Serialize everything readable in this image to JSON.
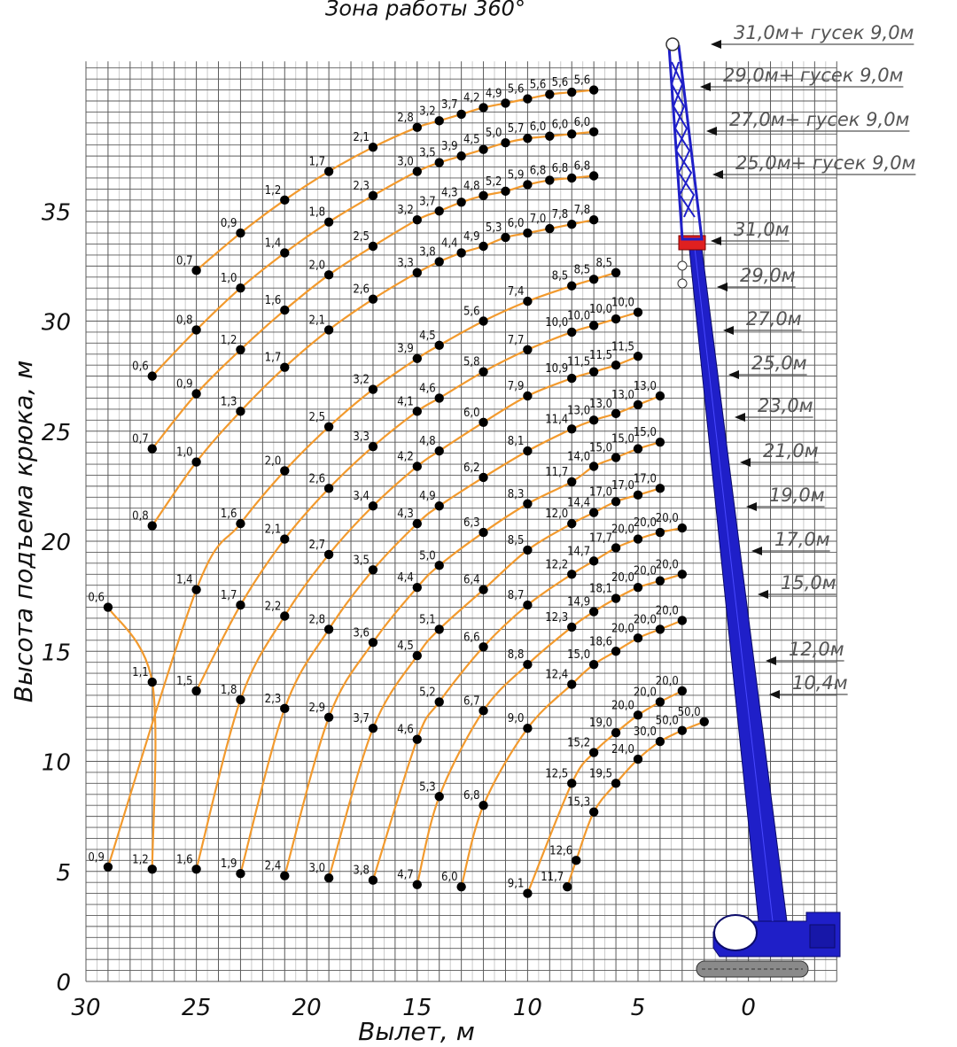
{
  "chart_data": {
    "type": "line",
    "title": "Зона работы 360°",
    "xlabel": "Вылет, м",
    "ylabel": "Высота подъема крюка, м",
    "xlim": [
      30,
      -4
    ],
    "ylim": [
      0,
      40
    ],
    "x_reversed": true,
    "xticks": [
      "30",
      "25",
      "20",
      "15",
      "10",
      "5",
      "0"
    ],
    "yticks": [
      "0",
      "5",
      "10",
      "15",
      "20",
      "25",
      "30",
      "35"
    ],
    "grid": true,
    "colors": {
      "curve": "#f29a2e",
      "point": "#000000",
      "boom": "#1f1fc8",
      "boom_head": "#e02020"
    },
    "boom_labels": [
      "31,0м+ гусек 9,0м",
      "29,0м+ гусек 9,0м",
      "27,0м+ гусек 9,0м",
      "25,0м+ гусек 9,0м",
      "31,0м",
      "29,0м",
      "27,0м",
      "25,0м",
      "23,0м",
      "21,0м",
      "19,0м",
      "17,0м",
      "15,0м",
      "12,0м",
      "10,4м"
    ],
    "series": [
      {
        "points": [
          {
            "x": 25,
            "y": 32.3,
            "label": "0,7"
          },
          {
            "x": 23,
            "y": 34.0,
            "label": "0,9"
          },
          {
            "x": 21,
            "y": 35.5,
            "label": "1,2"
          },
          {
            "x": 19,
            "y": 36.8,
            "label": "1,7"
          },
          {
            "x": 17,
            "y": 37.9,
            "label": "2,1"
          },
          {
            "x": 15,
            "y": 38.8,
            "label": "2,8"
          },
          {
            "x": 14,
            "y": 39.1,
            "label": "3,2"
          },
          {
            "x": 13,
            "y": 39.4,
            "label": "3,7"
          },
          {
            "x": 12,
            "y": 39.7,
            "label": "4,2"
          },
          {
            "x": 11,
            "y": 39.9,
            "label": "4,9"
          },
          {
            "x": 10,
            "y": 40.1,
            "label": "5,6"
          },
          {
            "x": 9,
            "y": 40.3,
            "label": "5,6"
          },
          {
            "x": 8,
            "y": 40.4,
            "label": "5,6"
          },
          {
            "x": 7,
            "y": 40.5,
            "label": "5,6"
          }
        ]
      },
      {
        "points": [
          {
            "x": 27,
            "y": 27.5,
            "label": "0,6"
          },
          {
            "x": 25,
            "y": 29.6,
            "label": "0,8"
          },
          {
            "x": 23,
            "y": 31.5,
            "label": "1,0"
          },
          {
            "x": 21,
            "y": 33.1,
            "label": "1,4"
          },
          {
            "x": 19,
            "y": 34.5,
            "label": "1,8"
          },
          {
            "x": 17,
            "y": 35.7,
            "label": "2,3"
          },
          {
            "x": 15,
            "y": 36.8,
            "label": "3,0"
          },
          {
            "x": 14,
            "y": 37.2,
            "label": "3,5"
          },
          {
            "x": 13,
            "y": 37.5,
            "label": "3,9"
          },
          {
            "x": 12,
            "y": 37.8,
            "label": "4,5"
          },
          {
            "x": 11,
            "y": 38.1,
            "label": "5,0"
          },
          {
            "x": 10,
            "y": 38.3,
            "label": "5,7"
          },
          {
            "x": 9,
            "y": 38.4,
            "label": "6,0"
          },
          {
            "x": 8,
            "y": 38.5,
            "label": "6,0"
          },
          {
            "x": 7,
            "y": 38.6,
            "label": "6,0"
          }
        ]
      },
      {
        "points": [
          {
            "x": 27,
            "y": 24.2,
            "label": "0,7"
          },
          {
            "x": 25,
            "y": 26.7,
            "label": "0,9"
          },
          {
            "x": 23,
            "y": 28.7,
            "label": "1,2"
          },
          {
            "x": 21,
            "y": 30.5,
            "label": "1,6"
          },
          {
            "x": 19,
            "y": 32.1,
            "label": "2,0"
          },
          {
            "x": 17,
            "y": 33.4,
            "label": "2,5"
          },
          {
            "x": 15,
            "y": 34.6,
            "label": "3,2"
          },
          {
            "x": 14,
            "y": 35.0,
            "label": "3,7"
          },
          {
            "x": 13,
            "y": 35.4,
            "label": "4,3"
          },
          {
            "x": 12,
            "y": 35.7,
            "label": "4,8"
          },
          {
            "x": 11,
            "y": 35.9,
            "label": "5,2"
          },
          {
            "x": 10,
            "y": 36.2,
            "label": "5,9"
          },
          {
            "x": 9,
            "y": 36.4,
            "label": "6,8"
          },
          {
            "x": 8,
            "y": 36.5,
            "label": "6,8"
          },
          {
            "x": 7,
            "y": 36.6,
            "label": "6,8"
          }
        ]
      },
      {
        "points": [
          {
            "x": 27,
            "y": 20.7,
            "label": "0,8"
          },
          {
            "x": 25,
            "y": 23.6,
            "label": "1,0"
          },
          {
            "x": 23,
            "y": 25.9,
            "label": "1,3"
          },
          {
            "x": 21,
            "y": 27.9,
            "label": "1,7"
          },
          {
            "x": 19,
            "y": 29.6,
            "label": "2,1"
          },
          {
            "x": 17,
            "y": 31.0,
            "label": "2,6"
          },
          {
            "x": 15,
            "y": 32.2,
            "label": "3,3"
          },
          {
            "x": 14,
            "y": 32.7,
            "label": "3,8"
          },
          {
            "x": 13,
            "y": 33.1,
            "label": "4,4"
          },
          {
            "x": 12,
            "y": 33.4,
            "label": "4,9"
          },
          {
            "x": 11,
            "y": 33.8,
            "label": "5,3"
          },
          {
            "x": 10,
            "y": 34.0,
            "label": "6,0"
          },
          {
            "x": 9,
            "y": 34.2,
            "label": "7,0"
          },
          {
            "x": 8,
            "y": 34.4,
            "label": "7,8"
          },
          {
            "x": 7,
            "y": 34.6,
            "label": "7,8"
          }
        ]
      },
      {
        "points": [
          {
            "x": 29,
            "y": 17.0,
            "label": "0,6"
          },
          {
            "x": 27,
            "y": 13.6,
            "label": "1,1"
          },
          {
            "x": 27,
            "y": 5.1,
            "label": "1,2"
          }
        ]
      },
      {
        "points": [
          {
            "x": 29,
            "y": 5.2,
            "label": "0,9"
          },
          {
            "x": 25,
            "y": 17.8,
            "label": "1,4"
          },
          {
            "x": 23,
            "y": 20.8,
            "label": "1,6"
          },
          {
            "x": 21,
            "y": 23.2,
            "label": "2,0"
          },
          {
            "x": 19,
            "y": 25.2,
            "label": "2,5"
          },
          {
            "x": 17,
            "y": 26.9,
            "label": "3,2"
          },
          {
            "x": 15,
            "y": 28.3,
            "label": "3,9"
          },
          {
            "x": 14,
            "y": 28.9,
            "label": "4,5"
          },
          {
            "x": 12,
            "y": 30.0,
            "label": "5,6"
          },
          {
            "x": 10,
            "y": 30.9,
            "label": "7,4"
          },
          {
            "x": 8,
            "y": 31.6,
            "label": "8,5"
          },
          {
            "x": 7,
            "y": 31.9,
            "label": "8,5"
          },
          {
            "x": 6,
            "y": 32.2,
            "label": "8,5"
          }
        ]
      },
      {
        "points": [
          {
            "x": 25,
            "y": 13.2,
            "label": "1,5"
          },
          {
            "x": 23,
            "y": 17.1,
            "label": "1,7"
          },
          {
            "x": 21,
            "y": 20.1,
            "label": "2,1"
          },
          {
            "x": 19,
            "y": 22.4,
            "label": "2,6"
          },
          {
            "x": 17,
            "y": 24.3,
            "label": "3,3"
          },
          {
            "x": 15,
            "y": 25.9,
            "label": "4,1"
          },
          {
            "x": 14,
            "y": 26.5,
            "label": "4,6"
          },
          {
            "x": 12,
            "y": 27.7,
            "label": "5,8"
          },
          {
            "x": 10,
            "y": 28.7,
            "label": "7,7"
          },
          {
            "x": 8,
            "y": 29.5,
            "label": "10,0"
          },
          {
            "x": 7,
            "y": 29.8,
            "label": "10,0"
          },
          {
            "x": 6,
            "y": 30.1,
            "label": "10,0"
          },
          {
            "x": 5,
            "y": 30.4,
            "label": "10,0"
          }
        ]
      },
      {
        "points": [
          {
            "x": 25,
            "y": 5.1,
            "label": "1,6"
          },
          {
            "x": 23,
            "y": 12.8,
            "label": "1,8"
          },
          {
            "x": 21,
            "y": 16.6,
            "label": "2,2"
          },
          {
            "x": 19,
            "y": 19.4,
            "label": "2,7"
          },
          {
            "x": 17,
            "y": 21.6,
            "label": "3,4"
          },
          {
            "x": 15,
            "y": 23.4,
            "label": "4,2"
          },
          {
            "x": 14,
            "y": 24.1,
            "label": "4,8"
          },
          {
            "x": 12,
            "y": 25.4,
            "label": "6,0"
          },
          {
            "x": 10,
            "y": 26.6,
            "label": "7,9"
          },
          {
            "x": 8,
            "y": 27.4,
            "label": "10,9"
          },
          {
            "x": 7,
            "y": 27.7,
            "label": "11,5"
          },
          {
            "x": 6,
            "y": 28.0,
            "label": "11,5"
          },
          {
            "x": 5,
            "y": 28.4,
            "label": "11,5"
          }
        ]
      },
      {
        "points": [
          {
            "x": 23,
            "y": 4.9,
            "label": "1,9"
          },
          {
            "x": 21,
            "y": 12.4,
            "label": "2,3"
          },
          {
            "x": 19,
            "y": 16.0,
            "label": "2,8"
          },
          {
            "x": 17,
            "y": 18.7,
            "label": "3,5"
          },
          {
            "x": 15,
            "y": 20.8,
            "label": "4,3"
          },
          {
            "x": 14,
            "y": 21.6,
            "label": "4,9"
          },
          {
            "x": 12,
            "y": 22.9,
            "label": "6,2"
          },
          {
            "x": 10,
            "y": 24.1,
            "label": "8,1"
          },
          {
            "x": 8,
            "y": 25.1,
            "label": "11,4"
          },
          {
            "x": 7,
            "y": 25.5,
            "label": "13,0"
          },
          {
            "x": 6,
            "y": 25.8,
            "label": "13,0"
          },
          {
            "x": 5,
            "y": 26.2,
            "label": "13,0"
          },
          {
            "x": 4,
            "y": 26.6,
            "label": "13,0"
          }
        ]
      },
      {
        "points": [
          {
            "x": 21,
            "y": 4.8,
            "label": "2,4"
          },
          {
            "x": 19,
            "y": 12.0,
            "label": "2,9"
          },
          {
            "x": 17,
            "y": 15.4,
            "label": "3,6"
          },
          {
            "x": 15,
            "y": 17.9,
            "label": "4,4"
          },
          {
            "x": 14,
            "y": 18.9,
            "label": "5,0"
          },
          {
            "x": 12,
            "y": 20.4,
            "label": "6,3"
          },
          {
            "x": 10,
            "y": 21.7,
            "label": "8,3"
          },
          {
            "x": 8,
            "y": 22.7,
            "label": "11,7"
          },
          {
            "x": 7,
            "y": 23.4,
            "label": "14,0"
          },
          {
            "x": 6,
            "y": 23.8,
            "label": "15,0"
          },
          {
            "x": 5,
            "y": 24.2,
            "label": "15,0"
          },
          {
            "x": 4,
            "y": 24.5,
            "label": "15,0"
          }
        ]
      },
      {
        "points": [
          {
            "x": 19,
            "y": 4.7,
            "label": "3,0"
          },
          {
            "x": 17,
            "y": 11.5,
            "label": "3,7"
          },
          {
            "x": 15,
            "y": 14.8,
            "label": "4,5"
          },
          {
            "x": 14,
            "y": 16.0,
            "label": "5,1"
          },
          {
            "x": 12,
            "y": 17.8,
            "label": "6,4"
          },
          {
            "x": 10,
            "y": 19.6,
            "label": "8,5"
          },
          {
            "x": 8,
            "y": 20.8,
            "label": "12,0"
          },
          {
            "x": 7,
            "y": 21.3,
            "label": "14,4"
          },
          {
            "x": 6,
            "y": 21.8,
            "label": "17,0"
          },
          {
            "x": 5,
            "y": 22.1,
            "label": "17,0"
          },
          {
            "x": 4,
            "y": 22.4,
            "label": "17,0"
          }
        ]
      },
      {
        "points": [
          {
            "x": 17,
            "y": 4.6,
            "label": "3,8"
          },
          {
            "x": 15,
            "y": 11.0,
            "label": "4,6"
          },
          {
            "x": 14,
            "y": 12.7,
            "label": "5,2"
          },
          {
            "x": 12,
            "y": 15.2,
            "label": "6,6"
          },
          {
            "x": 10,
            "y": 17.1,
            "label": "8,7"
          },
          {
            "x": 8,
            "y": 18.5,
            "label": "12,2"
          },
          {
            "x": 7,
            "y": 19.1,
            "label": "14,7"
          },
          {
            "x": 6,
            "y": 19.7,
            "label": "17,7"
          },
          {
            "x": 5,
            "y": 20.1,
            "label": "20,0"
          },
          {
            "x": 4,
            "y": 20.4,
            "label": "20,0"
          },
          {
            "x": 3,
            "y": 20.6,
            "label": "20,0"
          }
        ]
      },
      {
        "points": [
          {
            "x": 15,
            "y": 4.4,
            "label": "4,7"
          },
          {
            "x": 14,
            "y": 8.4,
            "label": "5,3"
          },
          {
            "x": 12,
            "y": 12.3,
            "label": "6,7"
          },
          {
            "x": 10,
            "y": 14.4,
            "label": "8,8"
          },
          {
            "x": 8,
            "y": 16.1,
            "label": "12,3"
          },
          {
            "x": 7,
            "y": 16.8,
            "label": "14,9"
          },
          {
            "x": 6,
            "y": 17.4,
            "label": "18,1"
          },
          {
            "x": 5,
            "y": 17.9,
            "label": "20,0"
          },
          {
            "x": 4,
            "y": 18.2,
            "label": "20,0"
          },
          {
            "x": 3,
            "y": 18.5,
            "label": "20,0"
          }
        ]
      },
      {
        "points": [
          {
            "x": 13,
            "y": 4.3,
            "label": "6,0"
          },
          {
            "x": 12,
            "y": 8.0,
            "label": "6,8"
          },
          {
            "x": 10,
            "y": 11.5,
            "label": "9,0"
          },
          {
            "x": 8,
            "y": 13.5,
            "label": "12,4"
          },
          {
            "x": 7,
            "y": 14.4,
            "label": "15,0"
          },
          {
            "x": 6,
            "y": 15.0,
            "label": "18,6"
          },
          {
            "x": 5,
            "y": 15.6,
            "label": "20,0"
          },
          {
            "x": 4,
            "y": 16.0,
            "label": "20,0"
          },
          {
            "x": 3,
            "y": 16.4,
            "label": "20,0"
          }
        ]
      },
      {
        "points": [
          {
            "x": 10,
            "y": 4.0,
            "label": "9,1"
          },
          {
            "x": 8,
            "y": 9.0,
            "label": "12,5"
          },
          {
            "x": 7,
            "y": 10.4,
            "label": "15,2"
          },
          {
            "x": 6,
            "y": 11.3,
            "label": "19,0"
          },
          {
            "x": 5,
            "y": 12.1,
            "label": "20,0"
          },
          {
            "x": 4,
            "y": 12.7,
            "label": "20,0"
          },
          {
            "x": 3,
            "y": 13.2,
            "label": "20,0"
          }
        ]
      },
      {
        "points": [
          {
            "x": 8.2,
            "y": 4.3,
            "label": "11,7"
          },
          {
            "x": 7.8,
            "y": 5.5,
            "label": "12,6"
          },
          {
            "x": 7,
            "y": 7.7,
            "label": "15,3"
          },
          {
            "x": 6,
            "y": 9.0,
            "label": "19,5"
          },
          {
            "x": 5,
            "y": 10.1,
            "label": "24,0"
          },
          {
            "x": 4,
            "y": 10.9,
            "label": "30,0"
          },
          {
            "x": 3,
            "y": 11.4,
            "label": "50,0"
          },
          {
            "x": 2,
            "y": 11.8,
            "label": "50,0"
          }
        ]
      }
    ]
  }
}
